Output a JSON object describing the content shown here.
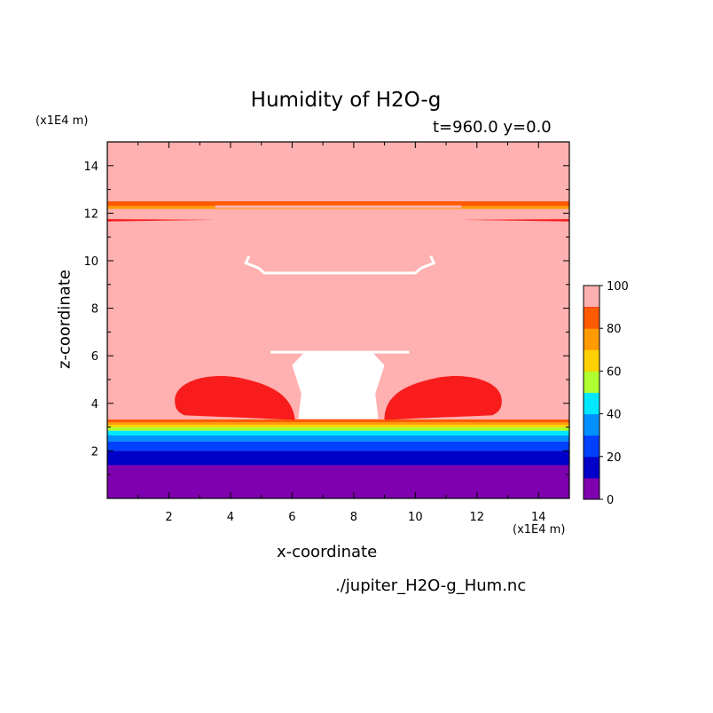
{
  "chart_data": {
    "type": "heatmap",
    "title": "Humidity of H2O-g",
    "subtitle": "t=960.0 y=0.0",
    "xlabel": "x-coordinate",
    "ylabel": "z-coordinate",
    "x_unit": "(x1E4 m)",
    "y_unit": "(x1E4 m)",
    "xlim": [
      0,
      15
    ],
    "ylim": [
      0,
      15
    ],
    "x_ticks": [
      2,
      4,
      6,
      8,
      10,
      12,
      14
    ],
    "y_ticks": [
      2,
      4,
      6,
      8,
      10,
      12,
      14
    ],
    "colorbar": {
      "levels": [
        0,
        10,
        20,
        30,
        40,
        50,
        60,
        70,
        80,
        90,
        100
      ],
      "labels": [
        0,
        20,
        40,
        60,
        80,
        100
      ],
      "colors": [
        "#7f00ae",
        "#0000c8",
        "#0040ff",
        "#0090ff",
        "#00e8ff",
        "#b0ff30",
        "#ffd000",
        "#ff9a00",
        "#ff5a00",
        "#f81c1c",
        "#ffb0b0"
      ]
    },
    "layers": [
      {
        "z": [
          0,
          1.4
        ],
        "humidity": 5
      },
      {
        "z": [
          1.4,
          2.0
        ],
        "humidity": 15
      },
      {
        "z": [
          2.0,
          2.4
        ],
        "humidity": 25
      },
      {
        "z": [
          2.4,
          2.65
        ],
        "humidity": 35
      },
      {
        "z": [
          2.65,
          2.85
        ],
        "humidity": 45
      },
      {
        "z": [
          2.85,
          3.0
        ],
        "humidity": 55
      },
      {
        "z": [
          3.0,
          3.1
        ],
        "humidity": 65
      },
      {
        "z": [
          3.1,
          3.2
        ],
        "humidity": 75
      },
      {
        "z": [
          3.2,
          3.32
        ],
        "humidity": 85
      },
      {
        "z": [
          3.32,
          15
        ],
        "humidity": 100
      }
    ],
    "bands": [
      {
        "z": [
          12.3,
          12.5
        ],
        "humidity": 85
      },
      {
        "z": [
          12.18,
          12.3
        ],
        "humidity": 75
      }
    ],
    "saturated_cells": [
      {
        "x_center": 3.8,
        "z_center": 4.1,
        "humidity": 95
      },
      {
        "x_center": 11.6,
        "z_center": 4.1,
        "humidity": 95
      }
    ]
  },
  "footnote": "./jupiter_H2O-g_Hum.nc"
}
